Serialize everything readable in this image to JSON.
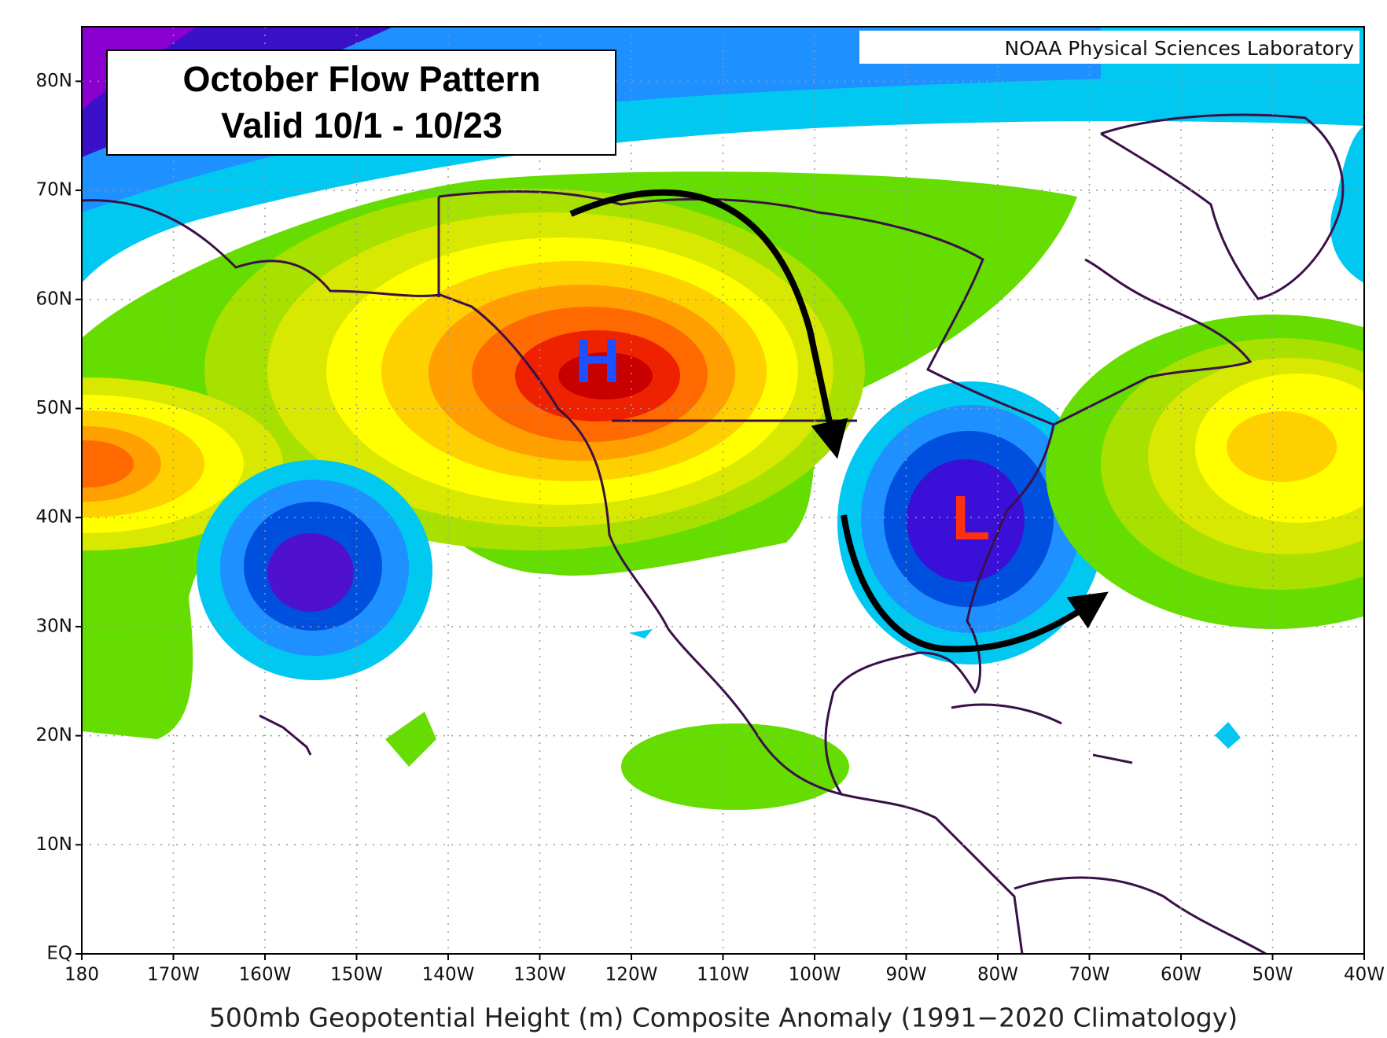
{
  "title": {
    "line1": "October Flow Pattern",
    "line2": "Valid 10/1 - 10/23"
  },
  "credit": "NOAA Physical Sciences Laboratory",
  "lat_ticks": [
    {
      "value": 80,
      "label": "80N"
    },
    {
      "value": 70,
      "label": "70N"
    },
    {
      "value": 60,
      "label": "60N"
    },
    {
      "value": 50,
      "label": "50N"
    },
    {
      "value": 40,
      "label": "40N"
    },
    {
      "value": 30,
      "label": "30N"
    },
    {
      "value": 20,
      "label": "20N"
    },
    {
      "value": 10,
      "label": "10N"
    },
    {
      "value": 0,
      "label": "EQ"
    }
  ],
  "lon_ticks": [
    {
      "value": -180,
      "label": "180"
    },
    {
      "value": -170,
      "label": "170W"
    },
    {
      "value": -160,
      "label": "160W"
    },
    {
      "value": -150,
      "label": "150W"
    },
    {
      "value": -140,
      "label": "140W"
    },
    {
      "value": -130,
      "label": "130W"
    },
    {
      "value": -120,
      "label": "120W"
    },
    {
      "value": -110,
      "label": "110W"
    },
    {
      "value": -100,
      "label": "100W"
    },
    {
      "value": -90,
      "label": "90W"
    },
    {
      "value": -80,
      "label": "80W"
    },
    {
      "value": -70,
      "label": "70W"
    },
    {
      "value": -60,
      "label": "60W"
    },
    {
      "value": -50,
      "label": "50W"
    },
    {
      "value": -40,
      "label": "40W"
    }
  ],
  "high_label": "H",
  "low_label": "L",
  "caption": "500mb Geopotential Height (m) Composite Anomaly (1991−2020 Climatology)"
}
